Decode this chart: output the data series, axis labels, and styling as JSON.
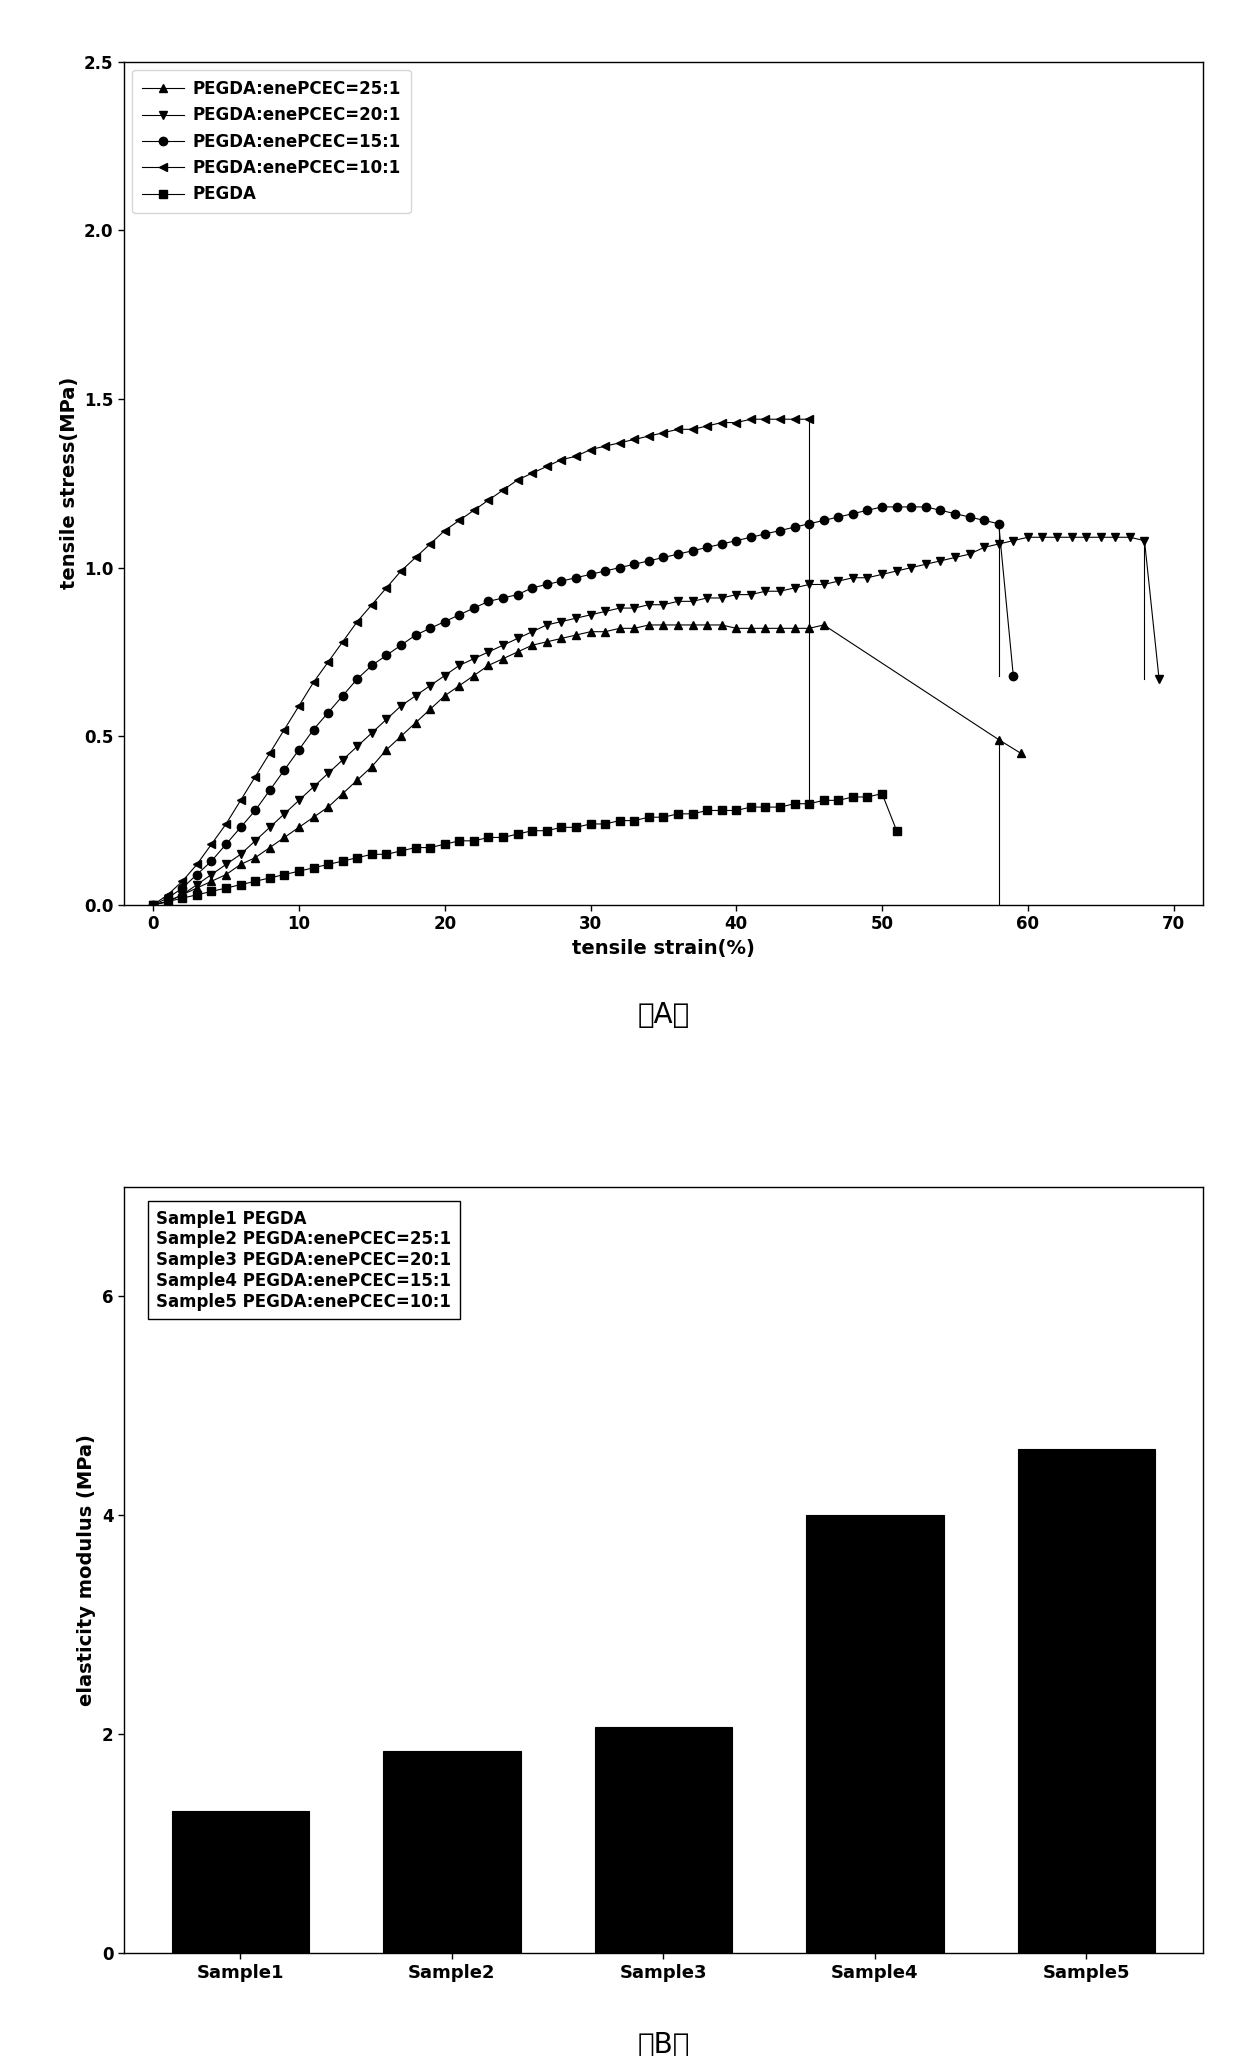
{
  "panel_A": {
    "xlabel": "tensile strain(%)",
    "ylabel": "tensile stress(MPa)",
    "xlim": [
      -2,
      72
    ],
    "ylim": [
      0,
      2.5
    ],
    "xticks": [
      0,
      10,
      20,
      30,
      40,
      50,
      60,
      70
    ],
    "yticks": [
      0.0,
      0.5,
      1.0,
      1.5,
      2.0,
      2.5
    ],
    "label_A": "（A）",
    "series": [
      {
        "label": "PEGDA:enePCEC=25:1",
        "marker": "^",
        "color": "black",
        "x": [
          0,
          1,
          2,
          3,
          4,
          5,
          6,
          7,
          8,
          9,
          10,
          11,
          12,
          13,
          14,
          15,
          16,
          17,
          18,
          19,
          20,
          21,
          22,
          23,
          24,
          25,
          26,
          27,
          28,
          29,
          30,
          31,
          32,
          33,
          34,
          35,
          36,
          37,
          38,
          39,
          40,
          41,
          42,
          43,
          44,
          45,
          46,
          58,
          59.5
        ],
        "y": [
          0,
          0.01,
          0.03,
          0.05,
          0.07,
          0.09,
          0.12,
          0.14,
          0.17,
          0.2,
          0.23,
          0.26,
          0.29,
          0.33,
          0.37,
          0.41,
          0.46,
          0.5,
          0.54,
          0.58,
          0.62,
          0.65,
          0.68,
          0.71,
          0.73,
          0.75,
          0.77,
          0.78,
          0.79,
          0.8,
          0.81,
          0.81,
          0.82,
          0.82,
          0.83,
          0.83,
          0.83,
          0.83,
          0.83,
          0.83,
          0.82,
          0.82,
          0.82,
          0.82,
          0.82,
          0.82,
          0.83,
          0.49,
          0.45
        ]
      },
      {
        "label": "PEGDA:enePCEC=20:1",
        "marker": "v",
        "color": "black",
        "x": [
          0,
          1,
          2,
          3,
          4,
          5,
          6,
          7,
          8,
          9,
          10,
          11,
          12,
          13,
          14,
          15,
          16,
          17,
          18,
          19,
          20,
          21,
          22,
          23,
          24,
          25,
          26,
          27,
          28,
          29,
          30,
          31,
          32,
          33,
          34,
          35,
          36,
          37,
          38,
          39,
          40,
          41,
          42,
          43,
          44,
          45,
          46,
          47,
          48,
          49,
          50,
          51,
          52,
          53,
          54,
          55,
          56,
          57,
          58,
          59,
          60,
          61,
          62,
          63,
          64,
          65,
          66,
          67,
          68,
          69
        ],
        "y": [
          0,
          0.01,
          0.03,
          0.06,
          0.09,
          0.12,
          0.15,
          0.19,
          0.23,
          0.27,
          0.31,
          0.35,
          0.39,
          0.43,
          0.47,
          0.51,
          0.55,
          0.59,
          0.62,
          0.65,
          0.68,
          0.71,
          0.73,
          0.75,
          0.77,
          0.79,
          0.81,
          0.83,
          0.84,
          0.85,
          0.86,
          0.87,
          0.88,
          0.88,
          0.89,
          0.89,
          0.9,
          0.9,
          0.91,
          0.91,
          0.92,
          0.92,
          0.93,
          0.93,
          0.94,
          0.95,
          0.95,
          0.96,
          0.97,
          0.97,
          0.98,
          0.99,
          1.0,
          1.01,
          1.02,
          1.03,
          1.04,
          1.06,
          1.07,
          1.08,
          1.09,
          1.09,
          1.09,
          1.09,
          1.09,
          1.09,
          1.09,
          1.09,
          1.08,
          0.67
        ]
      },
      {
        "label": "PEGDA:enePCEC=15:1",
        "marker": "o",
        "color": "black",
        "x": [
          0,
          1,
          2,
          3,
          4,
          5,
          6,
          7,
          8,
          9,
          10,
          11,
          12,
          13,
          14,
          15,
          16,
          17,
          18,
          19,
          20,
          21,
          22,
          23,
          24,
          25,
          26,
          27,
          28,
          29,
          30,
          31,
          32,
          33,
          34,
          35,
          36,
          37,
          38,
          39,
          40,
          41,
          42,
          43,
          44,
          45,
          46,
          47,
          48,
          49,
          50,
          51,
          52,
          53,
          54,
          55,
          56,
          57,
          58,
          59
        ],
        "y": [
          0,
          0.02,
          0.05,
          0.09,
          0.13,
          0.18,
          0.23,
          0.28,
          0.34,
          0.4,
          0.46,
          0.52,
          0.57,
          0.62,
          0.67,
          0.71,
          0.74,
          0.77,
          0.8,
          0.82,
          0.84,
          0.86,
          0.88,
          0.9,
          0.91,
          0.92,
          0.94,
          0.95,
          0.96,
          0.97,
          0.98,
          0.99,
          1.0,
          1.01,
          1.02,
          1.03,
          1.04,
          1.05,
          1.06,
          1.07,
          1.08,
          1.09,
          1.1,
          1.11,
          1.12,
          1.13,
          1.14,
          1.15,
          1.16,
          1.17,
          1.18,
          1.18,
          1.18,
          1.18,
          1.17,
          1.16,
          1.15,
          1.14,
          1.13,
          0.68
        ]
      },
      {
        "label": "PEGDA:enePCEC=10:1",
        "marker": "<",
        "color": "black",
        "x": [
          0,
          1,
          2,
          3,
          4,
          5,
          6,
          7,
          8,
          9,
          10,
          11,
          12,
          13,
          14,
          15,
          16,
          17,
          18,
          19,
          20,
          21,
          22,
          23,
          24,
          25,
          26,
          27,
          28,
          29,
          30,
          31,
          32,
          33,
          34,
          35,
          36,
          37,
          38,
          39,
          40,
          41,
          42,
          43,
          44,
          45
        ],
        "y": [
          0,
          0.03,
          0.07,
          0.12,
          0.18,
          0.24,
          0.31,
          0.38,
          0.45,
          0.52,
          0.59,
          0.66,
          0.72,
          0.78,
          0.84,
          0.89,
          0.94,
          0.99,
          1.03,
          1.07,
          1.11,
          1.14,
          1.17,
          1.2,
          1.23,
          1.26,
          1.28,
          1.3,
          1.32,
          1.33,
          1.35,
          1.36,
          1.37,
          1.38,
          1.39,
          1.4,
          1.41,
          1.41,
          1.42,
          1.43,
          1.43,
          1.44,
          1.44,
          1.44,
          1.44,
          1.44
        ]
      },
      {
        "label": "PEGDA",
        "marker": "s",
        "color": "black",
        "x": [
          0,
          1,
          2,
          3,
          4,
          5,
          6,
          7,
          8,
          9,
          10,
          11,
          12,
          13,
          14,
          15,
          16,
          17,
          18,
          19,
          20,
          21,
          22,
          23,
          24,
          25,
          26,
          27,
          28,
          29,
          30,
          31,
          32,
          33,
          34,
          35,
          36,
          37,
          38,
          39,
          40,
          41,
          42,
          43,
          44,
          45,
          46,
          47,
          48,
          49,
          50,
          51
        ],
        "y": [
          0,
          0.01,
          0.02,
          0.03,
          0.04,
          0.05,
          0.06,
          0.07,
          0.08,
          0.09,
          0.1,
          0.11,
          0.12,
          0.13,
          0.14,
          0.15,
          0.15,
          0.16,
          0.17,
          0.17,
          0.18,
          0.19,
          0.19,
          0.2,
          0.2,
          0.21,
          0.22,
          0.22,
          0.23,
          0.23,
          0.24,
          0.24,
          0.25,
          0.25,
          0.26,
          0.26,
          0.27,
          0.27,
          0.28,
          0.28,
          0.28,
          0.29,
          0.29,
          0.29,
          0.3,
          0.3,
          0.31,
          0.31,
          0.32,
          0.32,
          0.33,
          0.22
        ]
      }
    ],
    "fracture_lines": [
      {
        "x1": 45,
        "y1": 1.44,
        "x2": 45,
        "y2": 0.3
      },
      {
        "x1": 58,
        "y1": 1.13,
        "x2": 58,
        "y2": 0.68
      },
      {
        "x1": 68,
        "y1": 1.08,
        "x2": 68,
        "y2": 0.67
      },
      {
        "x1": 58,
        "y1": 0.49,
        "x2": 58,
        "y2": 0.0
      }
    ]
  },
  "panel_B": {
    "ylabel": "elasticity modulus (MPa)",
    "categories": [
      "Sample1",
      "Sample2",
      "Sample3",
      "Sample4",
      "Sample5"
    ],
    "values": [
      1.3,
      1.85,
      2.07,
      4.0,
      4.6
    ],
    "bar_color": "black",
    "ylim": [
      0,
      7.0
    ],
    "yticks": [
      0,
      2,
      4,
      6
    ],
    "label_B": "（B）",
    "legend_text": "Sample1 PEGDA\nSample2 PEGDA:enePCEC=25:1\nSample3 PEGDA:enePCEC=20:1\nSample4 PEGDA:enePCEC=15:1\nSample5 PEGDA:enePCEC=10:1"
  }
}
